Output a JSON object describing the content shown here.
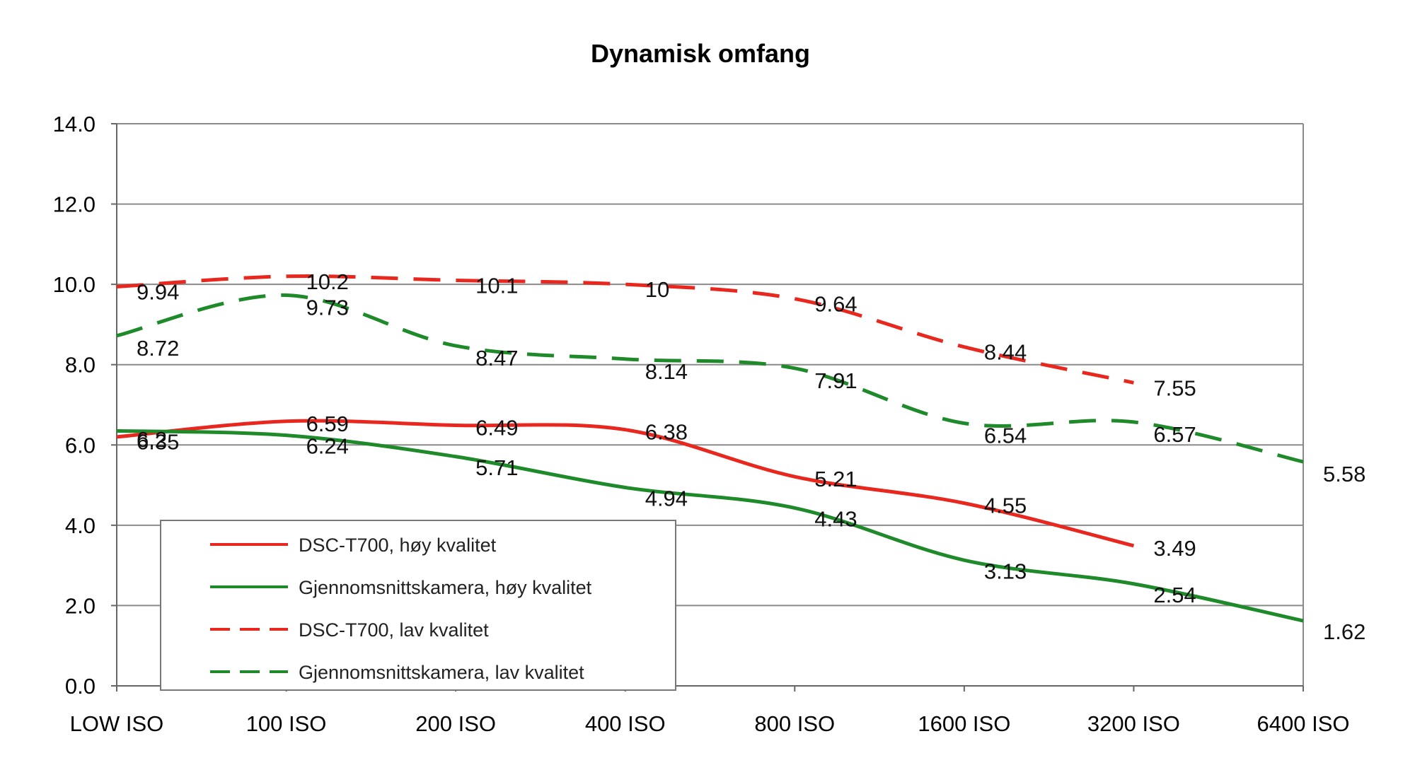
{
  "chart_data": {
    "type": "line",
    "title": "Dynamisk omfang",
    "xlabel": "",
    "ylabel": "",
    "categories": [
      "LOW ISO",
      "100 ISO",
      "200 ISO",
      "400 ISO",
      "800 ISO",
      "1600 ISO",
      "3200 ISO",
      "6400 ISO"
    ],
    "ylim": [
      0,
      14
    ],
    "yticks": [
      "0.0",
      "2.0",
      "4.0",
      "6.0",
      "8.0",
      "10.0",
      "12.0",
      "14.0"
    ],
    "grid": true,
    "legend_position": "bottom-left",
    "series": [
      {
        "name": "DSC-T700, høy kvalitet",
        "color": "#e8281e",
        "dash": false,
        "values": [
          6.2,
          6.59,
          6.49,
          6.38,
          5.21,
          4.55,
          3.49,
          null
        ],
        "labels": [
          "6.2",
          "6.59",
          "6.49",
          "6.38",
          "5.21",
          "4.55",
          "3.49",
          ""
        ]
      },
      {
        "name": "Gjennomsnittskamera, høy kvalitet",
        "color": "#1e8a2a",
        "dash": false,
        "values": [
          6.35,
          6.24,
          5.71,
          4.94,
          4.43,
          3.13,
          2.54,
          1.62
        ],
        "labels": [
          "6.35",
          "6.24",
          "5.71",
          "4.94",
          "4.43",
          "3.13",
          "2.54",
          "1.62"
        ]
      },
      {
        "name": "DSC-T700, lav kvalitet",
        "color": "#e8281e",
        "dash": true,
        "values": [
          9.94,
          10.2,
          10.1,
          10.0,
          9.64,
          8.44,
          7.55,
          null
        ],
        "labels": [
          "9.94",
          "10.2",
          "10.1",
          "10",
          "9.64",
          "8.44",
          "7.55",
          ""
        ]
      },
      {
        "name": "Gjennomsnittskamera, lav kvalitet",
        "color": "#1e8a2a",
        "dash": true,
        "values": [
          8.72,
          9.73,
          8.47,
          8.14,
          7.91,
          6.54,
          6.57,
          5.58
        ],
        "labels": [
          "8.72",
          "9.73",
          "8.47",
          "8.14",
          "7.91",
          "6.54",
          "6.57",
          "5.58"
        ]
      }
    ]
  }
}
